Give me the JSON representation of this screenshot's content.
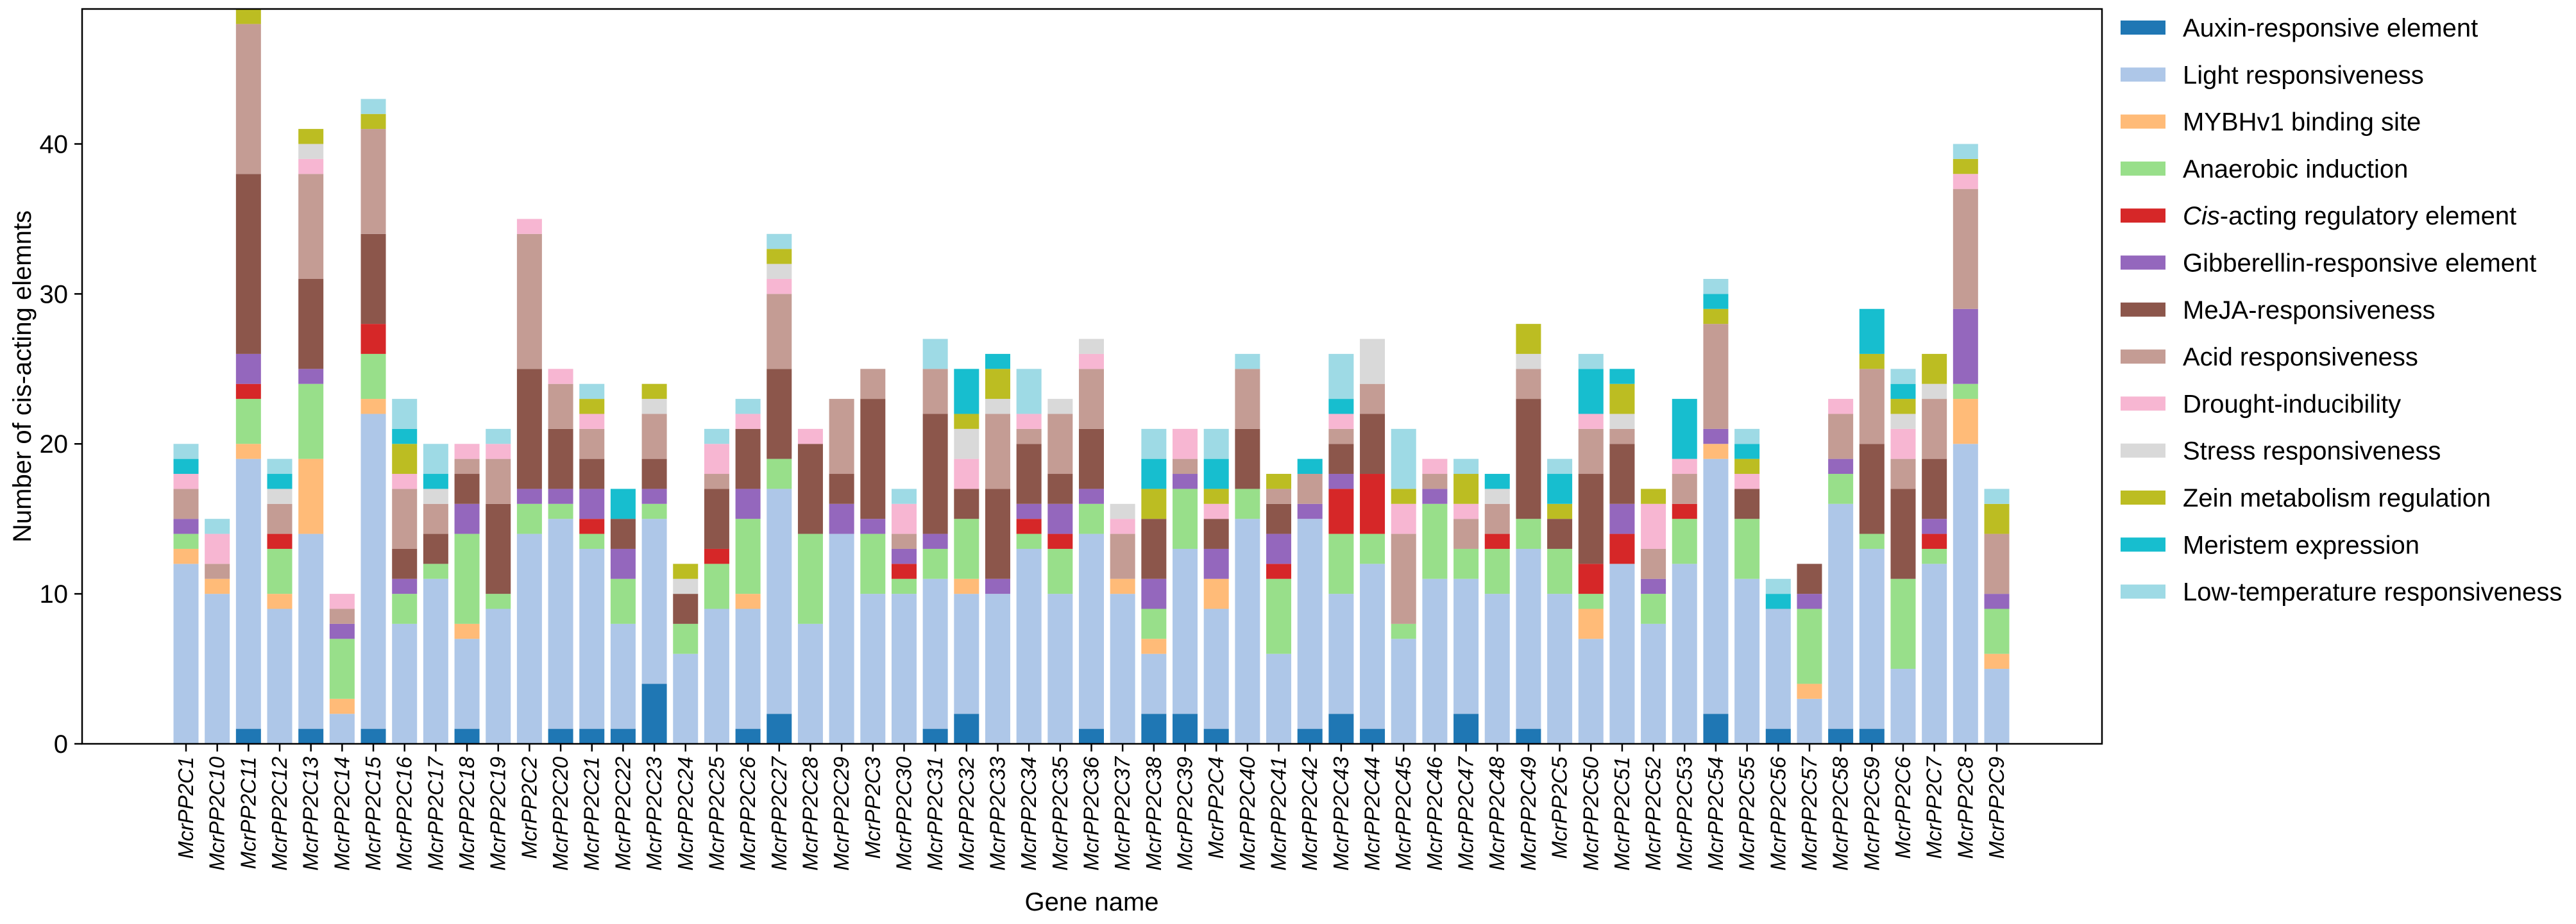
{
  "chart_data": {
    "type": "bar",
    "stacked": true,
    "xlabel": "Gene name",
    "ylabel": "Number of cis-acting elemnts",
    "ylim": [
      0,
      49
    ],
    "yticks": [
      "0",
      "10",
      "20",
      "30",
      "40"
    ],
    "legend_position": "right-outside",
    "series": [
      {
        "name": "Auxin-responsive element",
        "color": "#1f77b4"
      },
      {
        "name": "Light responsiveness",
        "color": "#aec7e8"
      },
      {
        "name": "MYBHv1 binding site",
        "color": "#ffbb78"
      },
      {
        "name": "Anaerobic induction",
        "color": "#98df8a"
      },
      {
        "name": "Cis-acting regulatory element",
        "italic_part": "Cis",
        "rest_part": "-acting regulatory element",
        "color": "#d62728"
      },
      {
        "name": "Gibberellin-responsive element",
        "color": "#9467bd"
      },
      {
        "name": "MeJA-responsiveness",
        "color": "#8c564b"
      },
      {
        "name": "Acid responsiveness",
        "color": "#c49c94"
      },
      {
        "name": "Drought-inducibility",
        "color": "#f7b6d2"
      },
      {
        "name": "Stress responsiveness",
        "color": "#d9d9d9"
      },
      {
        "name": "Zein metabolism regulation",
        "color": "#bcbd22"
      },
      {
        "name": "Meristem expression",
        "color": "#17becf"
      },
      {
        "name": "Low-temperature responsiveness",
        "color": "#9edae5"
      }
    ],
    "categories": [
      {
        "gene": "McrPP2C1",
        "counts": [
          0,
          12,
          1,
          1,
          0,
          1,
          0,
          2,
          1,
          0,
          0,
          1,
          1
        ]
      },
      {
        "gene": "McrPP2C10",
        "counts": [
          0,
          10,
          1,
          0,
          0,
          0,
          0,
          1,
          2,
          0,
          0,
          0,
          1
        ]
      },
      {
        "gene": "McrPP2C11",
        "counts": [
          1,
          18,
          1,
          3,
          1,
          2,
          12,
          10,
          0,
          0,
          1,
          0,
          0
        ]
      },
      {
        "gene": "McrPP2C12",
        "counts": [
          0,
          9,
          1,
          3,
          1,
          0,
          0,
          2,
          0,
          1,
          0,
          1,
          1
        ]
      },
      {
        "gene": "McrPP2C13",
        "counts": [
          1,
          13,
          5,
          5,
          0,
          1,
          6,
          7,
          1,
          1,
          1,
          0,
          0
        ]
      },
      {
        "gene": "McrPP2C14",
        "counts": [
          0,
          2,
          1,
          4,
          0,
          1,
          0,
          1,
          1,
          0,
          0,
          0,
          0
        ]
      },
      {
        "gene": "McrPP2C15",
        "counts": [
          1,
          21,
          1,
          3,
          2,
          0,
          6,
          7,
          0,
          0,
          1,
          0,
          1
        ]
      },
      {
        "gene": "McrPP2C16",
        "counts": [
          0,
          8,
          0,
          2,
          0,
          1,
          2,
          4,
          1,
          0,
          2,
          1,
          2
        ]
      },
      {
        "gene": "McrPP2C17",
        "counts": [
          0,
          11,
          0,
          1,
          0,
          0,
          2,
          2,
          0,
          1,
          0,
          1,
          2
        ]
      },
      {
        "gene": "McrPP2C18",
        "counts": [
          1,
          6,
          1,
          6,
          0,
          2,
          2,
          1,
          1,
          0,
          0,
          0,
          0
        ]
      },
      {
        "gene": "McrPP2C19",
        "counts": [
          0,
          9,
          0,
          1,
          0,
          0,
          6,
          3,
          1,
          0,
          0,
          0,
          1
        ]
      },
      {
        "gene": "McrPP2C2",
        "counts": [
          0,
          14,
          0,
          2,
          0,
          1,
          8,
          9,
          1,
          0,
          0,
          0,
          0
        ]
      },
      {
        "gene": "McrPP2C20",
        "counts": [
          1,
          14,
          0,
          1,
          0,
          1,
          4,
          3,
          1,
          0,
          0,
          0,
          0
        ]
      },
      {
        "gene": "McrPP2C21",
        "counts": [
          1,
          12,
          0,
          1,
          1,
          2,
          2,
          2,
          1,
          0,
          1,
          0,
          1
        ]
      },
      {
        "gene": "McrPP2C22",
        "counts": [
          1,
          7,
          0,
          3,
          0,
          2,
          2,
          0,
          0,
          0,
          0,
          2,
          0
        ]
      },
      {
        "gene": "McrPP2C23",
        "counts": [
          4,
          11,
          0,
          1,
          0,
          1,
          2,
          3,
          0,
          1,
          1,
          0,
          0
        ]
      },
      {
        "gene": "McrPP2C24",
        "counts": [
          0,
          6,
          0,
          2,
          0,
          0,
          2,
          0,
          0,
          1,
          1,
          0,
          0
        ]
      },
      {
        "gene": "McrPP2C25",
        "counts": [
          0,
          9,
          0,
          3,
          1,
          0,
          4,
          1,
          2,
          0,
          0,
          0,
          1
        ]
      },
      {
        "gene": "McrPP2C26",
        "counts": [
          1,
          8,
          1,
          5,
          0,
          2,
          4,
          0,
          1,
          0,
          0,
          0,
          1
        ]
      },
      {
        "gene": "McrPP2C27",
        "counts": [
          2,
          15,
          0,
          2,
          0,
          0,
          6,
          5,
          1,
          1,
          1,
          0,
          1
        ]
      },
      {
        "gene": "McrPP2C28",
        "counts": [
          0,
          8,
          0,
          6,
          0,
          0,
          6,
          0,
          1,
          0,
          0,
          0,
          0
        ]
      },
      {
        "gene": "McrPP2C29",
        "counts": [
          0,
          14,
          0,
          0,
          0,
          2,
          2,
          5,
          0,
          0,
          0,
          0,
          0
        ]
      },
      {
        "gene": "McrPP2C3",
        "counts": [
          0,
          10,
          0,
          4,
          0,
          1,
          8,
          2,
          0,
          0,
          0,
          0,
          0
        ]
      },
      {
        "gene": "McrPP2C30",
        "counts": [
          0,
          10,
          0,
          1,
          1,
          1,
          0,
          1,
          2,
          0,
          0,
          0,
          1
        ]
      },
      {
        "gene": "McrPP2C31",
        "counts": [
          1,
          10,
          0,
          2,
          0,
          1,
          8,
          3,
          0,
          0,
          0,
          0,
          2
        ]
      },
      {
        "gene": "McrPP2C32",
        "counts": [
          2,
          8,
          1,
          4,
          0,
          0,
          2,
          0,
          2,
          2,
          1,
          3,
          0
        ]
      },
      {
        "gene": "McrPP2C33",
        "counts": [
          0,
          10,
          0,
          0,
          0,
          1,
          6,
          5,
          0,
          1,
          2,
          1,
          0
        ]
      },
      {
        "gene": "McrPP2C34",
        "counts": [
          0,
          13,
          0,
          1,
          1,
          1,
          4,
          1,
          1,
          0,
          0,
          0,
          3
        ]
      },
      {
        "gene": "McrPP2C35",
        "counts": [
          0,
          10,
          0,
          3,
          1,
          2,
          2,
          4,
          0,
          1,
          0,
          0,
          0
        ]
      },
      {
        "gene": "McrPP2C36",
        "counts": [
          1,
          13,
          0,
          2,
          0,
          1,
          4,
          4,
          1,
          1,
          0,
          0,
          0
        ]
      },
      {
        "gene": "McrPP2C37",
        "counts": [
          0,
          10,
          1,
          0,
          0,
          0,
          0,
          3,
          1,
          1,
          0,
          0,
          0
        ]
      },
      {
        "gene": "McrPP2C38",
        "counts": [
          2,
          4,
          1,
          2,
          0,
          2,
          4,
          0,
          0,
          0,
          2,
          2,
          2
        ]
      },
      {
        "gene": "McrPP2C39",
        "counts": [
          2,
          11,
          0,
          4,
          0,
          1,
          0,
          1,
          2,
          0,
          0,
          0,
          0
        ]
      },
      {
        "gene": "McrPP2C4",
        "counts": [
          1,
          8,
          2,
          0,
          0,
          2,
          2,
          0,
          1,
          0,
          1,
          2,
          2
        ]
      },
      {
        "gene": "McrPP2C40",
        "counts": [
          0,
          15,
          0,
          2,
          0,
          0,
          4,
          4,
          0,
          0,
          0,
          0,
          1
        ]
      },
      {
        "gene": "McrPP2C41",
        "counts": [
          0,
          6,
          0,
          5,
          1,
          2,
          2,
          1,
          0,
          0,
          1,
          0,
          0
        ]
      },
      {
        "gene": "McrPP2C42",
        "counts": [
          1,
          14,
          0,
          0,
          0,
          1,
          0,
          2,
          0,
          0,
          0,
          1,
          0
        ]
      },
      {
        "gene": "McrPP2C43",
        "counts": [
          2,
          8,
          0,
          4,
          3,
          1,
          2,
          1,
          1,
          0,
          0,
          1,
          3
        ]
      },
      {
        "gene": "McrPP2C44",
        "counts": [
          1,
          11,
          0,
          2,
          4,
          0,
          4,
          2,
          0,
          3,
          0,
          0,
          0
        ]
      },
      {
        "gene": "McrPP2C45",
        "counts": [
          0,
          7,
          0,
          1,
          0,
          0,
          0,
          6,
          2,
          0,
          1,
          0,
          4
        ]
      },
      {
        "gene": "McrPP2C46",
        "counts": [
          0,
          11,
          0,
          5,
          0,
          1,
          0,
          1,
          1,
          0,
          0,
          0,
          0
        ]
      },
      {
        "gene": "McrPP2C47",
        "counts": [
          2,
          9,
          0,
          2,
          0,
          0,
          0,
          2,
          1,
          0,
          2,
          0,
          1
        ]
      },
      {
        "gene": "McrPP2C48",
        "counts": [
          0,
          10,
          0,
          3,
          1,
          0,
          0,
          2,
          0,
          1,
          0,
          1,
          0
        ]
      },
      {
        "gene": "McrPP2C49",
        "counts": [
          1,
          12,
          0,
          2,
          0,
          0,
          8,
          2,
          0,
          1,
          2,
          0,
          0
        ]
      },
      {
        "gene": "McrPP2C5",
        "counts": [
          0,
          10,
          0,
          3,
          0,
          0,
          2,
          0,
          0,
          0,
          1,
          2,
          1
        ]
      },
      {
        "gene": "McrPP2C50",
        "counts": [
          0,
          7,
          2,
          1,
          2,
          0,
          6,
          3,
          1,
          0,
          0,
          3,
          1
        ]
      },
      {
        "gene": "McrPP2C51",
        "counts": [
          0,
          12,
          0,
          0,
          2,
          2,
          4,
          1,
          0,
          1,
          2,
          1,
          0
        ]
      },
      {
        "gene": "McrPP2C52",
        "counts": [
          0,
          8,
          0,
          2,
          0,
          1,
          0,
          2,
          3,
          0,
          1,
          0,
          0
        ]
      },
      {
        "gene": "McrPP2C53",
        "counts": [
          0,
          12,
          0,
          3,
          1,
          0,
          0,
          2,
          1,
          0,
          0,
          4,
          0
        ]
      },
      {
        "gene": "McrPP2C54",
        "counts": [
          2,
          17,
          1,
          0,
          0,
          1,
          0,
          7,
          0,
          0,
          1,
          1,
          1
        ]
      },
      {
        "gene": "McrPP2C55",
        "counts": [
          0,
          11,
          0,
          4,
          0,
          0,
          2,
          0,
          1,
          0,
          1,
          1,
          1
        ]
      },
      {
        "gene": "McrPP2C56",
        "counts": [
          1,
          8,
          0,
          0,
          0,
          0,
          0,
          0,
          0,
          0,
          0,
          1,
          1
        ]
      },
      {
        "gene": "McrPP2C57",
        "counts": [
          0,
          3,
          1,
          5,
          0,
          1,
          2,
          0,
          0,
          0,
          0,
          0,
          0
        ]
      },
      {
        "gene": "McrPP2C58",
        "counts": [
          1,
          15,
          0,
          2,
          0,
          1,
          0,
          3,
          1,
          0,
          0,
          0,
          0
        ]
      },
      {
        "gene": "McrPP2C59",
        "counts": [
          1,
          12,
          0,
          1,
          0,
          0,
          6,
          5,
          0,
          0,
          1,
          3,
          0
        ]
      },
      {
        "gene": "McrPP2C6",
        "counts": [
          0,
          5,
          0,
          6,
          0,
          0,
          6,
          2,
          2,
          1,
          1,
          1,
          1
        ]
      },
      {
        "gene": "McrPP2C7",
        "counts": [
          0,
          12,
          0,
          1,
          1,
          1,
          4,
          4,
          0,
          1,
          2,
          0,
          0
        ]
      },
      {
        "gene": "McrPP2C8",
        "counts": [
          0,
          20,
          3,
          1,
          0,
          5,
          0,
          8,
          1,
          0,
          1,
          0,
          1
        ]
      },
      {
        "gene": "McrPP2C9",
        "counts": [
          0,
          5,
          1,
          3,
          0,
          1,
          0,
          4,
          0,
          0,
          2,
          0,
          1
        ]
      }
    ]
  }
}
